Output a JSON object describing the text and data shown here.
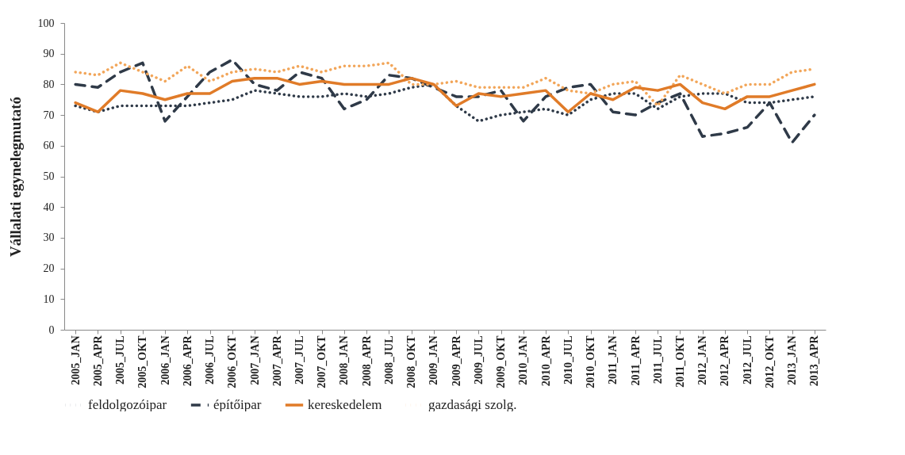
{
  "chart_data": {
    "type": "line",
    "ylabel": "Vállalati egynelegmutató",
    "categories": [
      "2005_JAN",
      "2005_APR",
      "2005_JUL",
      "2005_OKT",
      "2006_JAN",
      "2006_APR",
      "2006_JUL",
      "2006_OKT",
      "2007_JAN",
      "2007_APR",
      "2007_JUL",
      "2007_OKT",
      "2008_JAN",
      "2008_APR",
      "2008_JUL",
      "2008_OKT",
      "2009_JAN",
      "2009_APR",
      "2009_JUL",
      "2009_OKT",
      "2010_JAN",
      "2010_APR",
      "2010_JUL",
      "2010_OKT",
      "2011_JAN",
      "2011_APR",
      "2011_JUL",
      "2011_OKT",
      "2012_JAN",
      "2012_APR",
      "2012_JUL",
      "2012_OKT",
      "2013_JAN",
      "2013_APR"
    ],
    "series": [
      {
        "name": "feldolgozóipar",
        "color": "#2f3a48",
        "line_style": "dotted",
        "values": [
          73,
          71,
          73,
          73,
          73,
          73,
          74,
          75,
          78,
          77,
          76,
          76,
          77,
          76,
          77,
          79,
          80,
          73,
          68,
          70,
          71,
          72,
          70,
          75,
          77,
          77,
          72,
          76,
          77,
          77,
          74,
          74,
          75,
          76
        ]
      },
      {
        "name": "építőipar",
        "color": "#2f3a48",
        "line_style": "dashed",
        "values": [
          80,
          79,
          84,
          87,
          68,
          76,
          84,
          88,
          80,
          78,
          84,
          82,
          72,
          75,
          83,
          82,
          79,
          76,
          76,
          78,
          68,
          76,
          79,
          80,
          71,
          70,
          74,
          77,
          63,
          64,
          66,
          74,
          61,
          70
        ]
      },
      {
        "name": "kereskedelem",
        "color": "#e07b28",
        "line_style": "solid",
        "values": [
          74,
          71,
          78,
          77,
          75,
          77,
          77,
          81,
          82,
          82,
          80,
          81,
          80,
          80,
          80,
          82,
          80,
          73,
          77,
          76,
          77,
          78,
          71,
          77,
          75,
          79,
          78,
          80,
          74,
          72,
          76,
          76,
          78,
          80
        ]
      },
      {
        "name": "gazdasági szolg.",
        "color": "#f2a65a",
        "line_style": "dotted",
        "values": [
          84,
          83,
          87,
          84,
          81,
          86,
          81,
          84,
          85,
          84,
          86,
          84,
          86,
          86,
          87,
          80,
          80,
          81,
          79,
          79,
          79,
          82,
          78,
          77,
          80,
          81,
          73,
          83,
          80,
          77,
          80,
          80,
          84,
          85
        ]
      }
    ],
    "ylim": [
      0,
      100
    ],
    "yticks": [
      0,
      10,
      20,
      30,
      40,
      50,
      60,
      70,
      80,
      90,
      100
    ],
    "grid": false,
    "legend": "bottom"
  }
}
